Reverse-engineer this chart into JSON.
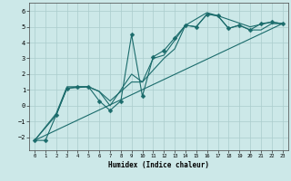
{
  "xlabel": "Humidex (Indice chaleur)",
  "bg_color": "#cce8e8",
  "grid_color": "#aacccc",
  "line_color": "#1a6b6b",
  "xlim": [
    -0.5,
    23.5
  ],
  "ylim": [
    -2.8,
    6.5
  ],
  "xticks": [
    0,
    1,
    2,
    3,
    4,
    5,
    6,
    7,
    8,
    9,
    10,
    11,
    12,
    13,
    14,
    15,
    16,
    17,
    18,
    19,
    20,
    21,
    22,
    23
  ],
  "yticks": [
    -2,
    -1,
    0,
    1,
    2,
    3,
    4,
    5,
    6
  ],
  "series": [
    {
      "x": [
        0,
        1,
        2,
        3,
        4,
        5,
        6,
        7,
        8,
        9,
        10,
        11,
        12,
        13,
        14,
        15,
        16,
        17,
        18,
        19,
        20,
        21,
        22,
        23
      ],
      "y": [
        -2.2,
        -2.2,
        -0.6,
        1.1,
        1.2,
        1.2,
        0.3,
        -0.3,
        0.3,
        4.5,
        0.6,
        3.1,
        3.5,
        4.3,
        5.1,
        5.0,
        5.8,
        5.7,
        4.9,
        5.1,
        4.8,
        5.2,
        5.3,
        5.2
      ],
      "marker": "D",
      "markersize": 2.5,
      "linewidth": 0.8
    },
    {
      "x": [
        0,
        2,
        3,
        5,
        6,
        7,
        9,
        10,
        12,
        13,
        14,
        15,
        16,
        17,
        18,
        19,
        20,
        21,
        22,
        23
      ],
      "y": [
        -2.2,
        -0.6,
        1.1,
        1.2,
        0.9,
        0.0,
        2.0,
        1.5,
        3.0,
        3.6,
        5.1,
        5.0,
        5.8,
        5.7,
        4.9,
        5.1,
        4.8,
        4.8,
        5.2,
        5.2
      ],
      "marker": null,
      "markersize": 0,
      "linewidth": 0.8
    },
    {
      "x": [
        0,
        23
      ],
      "y": [
        -2.2,
        5.2
      ],
      "marker": null,
      "markersize": 0,
      "linewidth": 0.8
    },
    {
      "x": [
        0,
        2,
        3,
        5,
        6,
        7,
        9,
        10,
        11,
        12,
        14,
        16,
        17,
        20,
        22,
        23
      ],
      "y": [
        -2.2,
        -0.5,
        1.2,
        1.2,
        0.9,
        0.3,
        1.5,
        1.5,
        3.0,
        3.2,
        5.1,
        5.9,
        5.7,
        5.0,
        5.3,
        5.2
      ],
      "marker": null,
      "markersize": 0,
      "linewidth": 0.8
    }
  ]
}
